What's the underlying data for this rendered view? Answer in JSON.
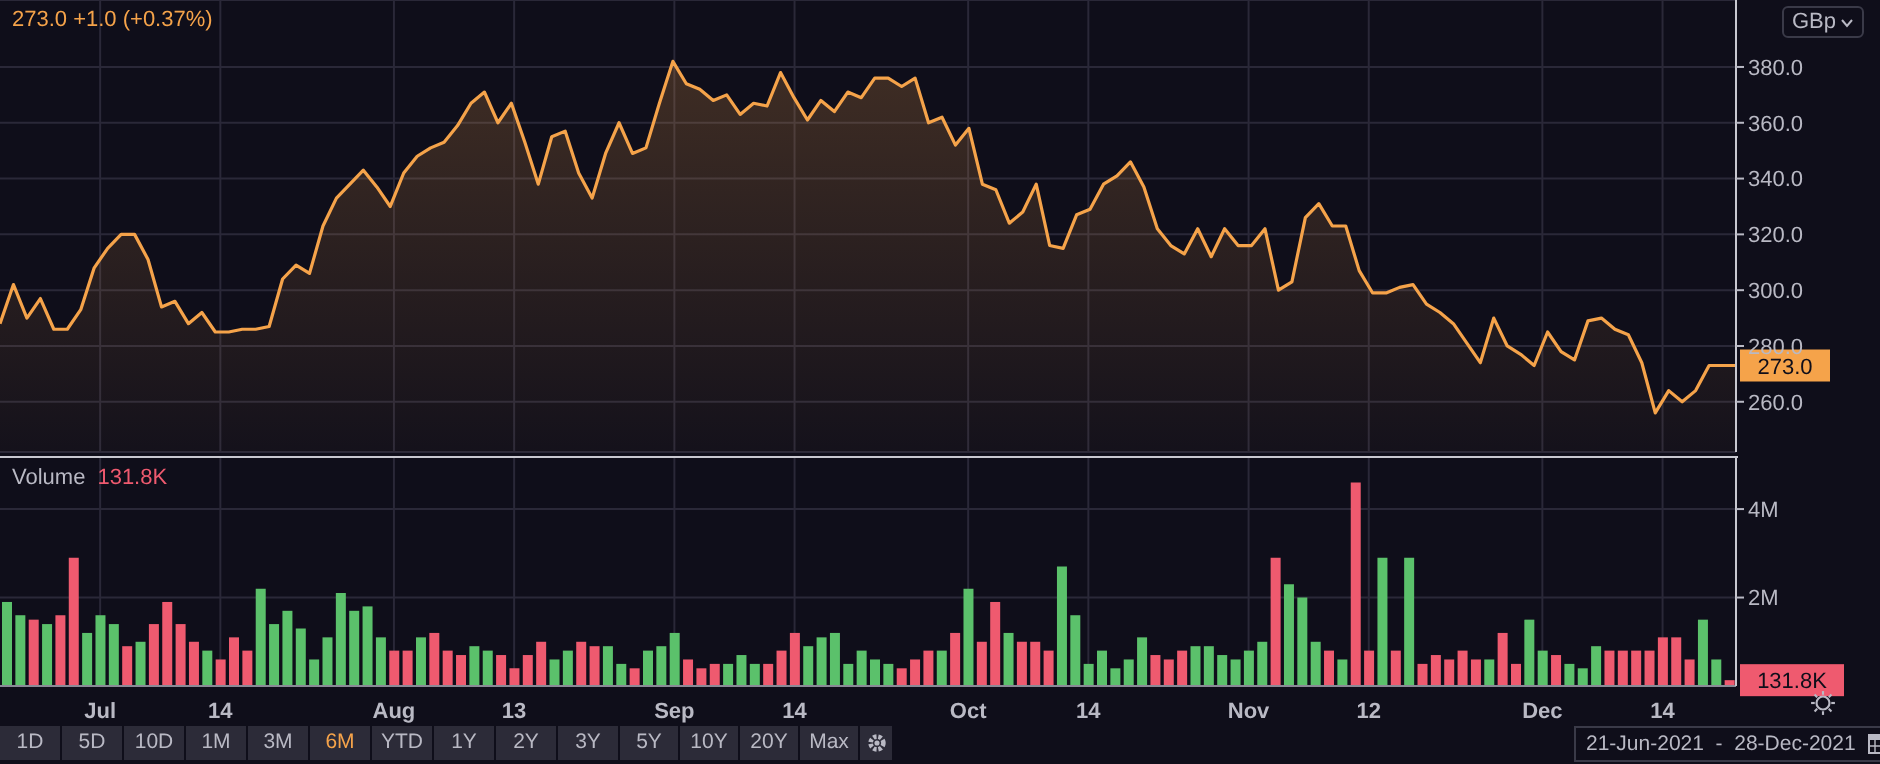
{
  "chart_data": [
    {
      "type": "area",
      "title": "273.0 +1.0 (+0.37%)",
      "ylabel": "GBp",
      "categories": [
        null,
        null,
        null,
        null,
        null,
        null,
        null,
        null,
        null,
        null,
        null,
        null,
        null,
        null,
        null,
        null,
        null,
        null,
        null,
        null,
        null,
        null,
        null,
        null,
        null,
        null,
        null,
        null,
        null,
        null,
        null,
        null,
        null,
        null,
        null,
        null,
        null,
        null,
        null,
        null,
        null,
        null,
        null,
        null,
        null,
        null,
        null,
        null,
        null,
        null,
        null,
        null,
        null,
        null,
        null,
        null,
        null,
        null,
        null,
        null,
        null,
        null,
        null,
        null,
        null,
        null,
        null,
        null,
        null,
        null,
        null,
        null,
        null,
        null,
        null,
        null,
        null,
        null,
        null,
        null,
        null,
        null,
        null,
        null,
        null,
        null,
        null,
        null,
        null,
        null,
        null,
        null,
        null,
        null,
        null,
        null,
        null,
        null,
        null,
        null,
        null,
        null,
        null,
        null,
        null,
        null,
        null,
        null,
        null,
        null,
        null,
        null,
        null,
        null,
        null,
        null,
        null,
        null,
        null,
        null,
        null,
        null,
        null,
        null,
        null,
        null,
        null,
        null,
        null,
        null
      ],
      "series": [
        {
          "color": "#f5a34a",
          "values": [
            288,
            302,
            290,
            297,
            286,
            286,
            293,
            308,
            315,
            320,
            320,
            311,
            294,
            296,
            288,
            292,
            285,
            285,
            286,
            286,
            287,
            304,
            309,
            306,
            323,
            333,
            338,
            343,
            337,
            330,
            342,
            348,
            351,
            353,
            359,
            367,
            371,
            360,
            367,
            353,
            338,
            355,
            357,
            342,
            333,
            349,
            360,
            349,
            351,
            367,
            382,
            374,
            372,
            368,
            370,
            363,
            367,
            366,
            378,
            369,
            361,
            368,
            364,
            371,
            369,
            376,
            376,
            373,
            376,
            360,
            362,
            352,
            358,
            338,
            336,
            324,
            328,
            338,
            316,
            315,
            327,
            329,
            338,
            341,
            346,
            337,
            322,
            316,
            313,
            322,
            312,
            322,
            316,
            316,
            322,
            300,
            303,
            326,
            331,
            323,
            323,
            307,
            299,
            299,
            301,
            302,
            295,
            292,
            288,
            281,
            274,
            290,
            280,
            277,
            273,
            285,
            278,
            275,
            289,
            290,
            286,
            284,
            274,
            256,
            264,
            260,
            264,
            273,
            273,
            273
          ]
        }
      ],
      "ylim": [
        242,
        404
      ],
      "yticks": [
        {
          "value": 260,
          "label": "260.0"
        },
        {
          "value": 280,
          "label": "280.0"
        },
        {
          "value": 300,
          "label": "300.0"
        },
        {
          "value": 320,
          "label": "320.0"
        },
        {
          "value": 340,
          "label": "340.0"
        },
        {
          "value": 360,
          "label": "360.0"
        },
        {
          "value": 380,
          "label": "380.0"
        }
      ],
      "annotations": [
        "273.0"
      ],
      "grid": true,
      "legend": false,
      "tick_labels": "y"
    },
    {
      "type": "bar",
      "title": "Volume",
      "subtitle": "131.8K",
      "categories": [
        null,
        null,
        null,
        null,
        null,
        null,
        null,
        "Jul",
        null,
        null,
        null,
        null,
        null,
        null,
        null,
        null,
        "14",
        null,
        null,
        null,
        null,
        null,
        null,
        null,
        null,
        null,
        null,
        null,
        null,
        "Aug",
        null,
        null,
        null,
        null,
        null,
        null,
        null,
        null,
        "13",
        null,
        null,
        null,
        null,
        null,
        null,
        null,
        null,
        null,
        null,
        null,
        "Sep",
        null,
        null,
        null,
        null,
        null,
        null,
        null,
        null,
        "14",
        null,
        null,
        null,
        null,
        null,
        null,
        null,
        null,
        null,
        null,
        null,
        null,
        "Oct",
        null,
        null,
        null,
        null,
        null,
        null,
        null,
        null,
        "14",
        null,
        null,
        null,
        null,
        null,
        null,
        null,
        null,
        null,
        null,
        null,
        "Nov",
        null,
        null,
        null,
        null,
        null,
        null,
        null,
        null,
        "12",
        null,
        null,
        null,
        null,
        null,
        null,
        null,
        null,
        null,
        null,
        null,
        null,
        "Dec",
        null,
        null,
        null,
        null,
        null,
        null,
        null,
        null,
        "14",
        null,
        null,
        null,
        null,
        null
      ],
      "values": [
        1.9,
        1.6,
        1.5,
        1.4,
        1.6,
        2.9,
        1.2,
        1.6,
        1.4,
        0.9,
        1.0,
        1.4,
        1.9,
        1.4,
        1.0,
        0.8,
        0.6,
        1.1,
        0.8,
        2.2,
        1.4,
        1.7,
        1.3,
        0.6,
        1.1,
        2.1,
        1.7,
        1.8,
        1.1,
        0.8,
        0.8,
        1.1,
        1.2,
        0.8,
        0.7,
        0.9,
        0.8,
        0.7,
        0.4,
        0.7,
        1.0,
        0.6,
        0.8,
        1.0,
        0.9,
        0.9,
        0.5,
        0.4,
        0.8,
        0.9,
        1.2,
        0.6,
        0.4,
        0.5,
        0.5,
        0.7,
        0.5,
        0.5,
        0.8,
        1.2,
        0.9,
        1.1,
        1.2,
        0.5,
        0.8,
        0.6,
        0.5,
        0.4,
        0.6,
        0.8,
        0.8,
        1.2,
        2.2,
        1.0,
        1.9,
        1.2,
        1.0,
        1.0,
        0.8,
        2.7,
        1.6,
        0.5,
        0.8,
        0.4,
        0.6,
        1.1,
        0.7,
        0.6,
        0.8,
        0.9,
        0.9,
        0.7,
        0.6,
        0.8,
        1.0,
        2.9,
        2.3,
        2.0,
        1.0,
        0.8,
        0.6,
        4.6,
        0.8,
        2.9,
        0.8,
        2.9,
        0.5,
        0.7,
        0.6,
        0.8,
        0.6,
        0.6,
        1.2,
        0.5,
        1.5,
        0.8,
        0.7,
        0.5,
        0.4,
        0.9,
        0.8,
        0.8,
        0.8,
        0.8,
        1.1,
        1.1,
        0.6,
        1.5,
        0.6,
        0.1318
      ],
      "colors": [
        "#5bc16b",
        "#5bc16b",
        "#ef5a6f",
        "#5bc16b",
        "#ef5a6f",
        "#ef5a6f",
        "#5bc16b",
        "#5bc16b",
        "#5bc16b",
        "#ef5a6f",
        "#5bc16b",
        "#ef5a6f",
        "#ef5a6f",
        "#ef5a6f",
        "#ef5a6f",
        "#5bc16b",
        "#ef5a6f",
        "#ef5a6f",
        "#ef5a6f",
        "#5bc16b",
        "#5bc16b",
        "#5bc16b",
        "#5bc16b",
        "#5bc16b",
        "#5bc16b",
        "#5bc16b",
        "#5bc16b",
        "#5bc16b",
        "#5bc16b",
        "#ef5a6f",
        "#ef5a6f",
        "#5bc16b",
        "#ef5a6f",
        "#ef5a6f",
        "#ef5a6f",
        "#5bc16b",
        "#5bc16b",
        "#ef5a6f",
        "#ef5a6f",
        "#ef5a6f",
        "#ef5a6f",
        "#5bc16b",
        "#5bc16b",
        "#ef5a6f",
        "#ef5a6f",
        "#5bc16b",
        "#5bc16b",
        "#ef5a6f",
        "#5bc16b",
        "#5bc16b",
        "#5bc16b",
        "#ef5a6f",
        "#ef5a6f",
        "#ef5a6f",
        "#5bc16b",
        "#5bc16b",
        "#5bc16b",
        "#ef5a6f",
        "#ef5a6f",
        "#ef5a6f",
        "#5bc16b",
        "#5bc16b",
        "#5bc16b",
        "#5bc16b",
        "#5bc16b",
        "#5bc16b",
        "#5bc16b",
        "#ef5a6f",
        "#ef5a6f",
        "#ef5a6f",
        "#5bc16b",
        "#ef5a6f",
        "#5bc16b",
        "#ef5a6f",
        "#ef5a6f",
        "#5bc16b",
        "#ef5a6f",
        "#ef5a6f",
        "#ef5a6f",
        "#5bc16b",
        "#5bc16b",
        "#5bc16b",
        "#5bc16b",
        "#5bc16b",
        "#5bc16b",
        "#5bc16b",
        "#ef5a6f",
        "#ef5a6f",
        "#ef5a6f",
        "#5bc16b",
        "#5bc16b",
        "#5bc16b",
        "#5bc16b",
        "#5bc16b",
        "#5bc16b",
        "#ef5a6f",
        "#5bc16b",
        "#5bc16b",
        "#5bc16b",
        "#ef5a6f",
        "#5bc16b",
        "#ef5a6f",
        "#ef5a6f",
        "#5bc16b",
        "#ef5a6f",
        "#5bc16b",
        "#ef5a6f",
        "#ef5a6f",
        "#ef5a6f",
        "#ef5a6f",
        "#ef5a6f",
        "#5bc16b",
        "#ef5a6f",
        "#ef5a6f",
        "#5bc16b",
        "#5bc16b",
        "#ef5a6f",
        "#5bc16b",
        "#5bc16b",
        "#5bc16b",
        "#ef5a6f",
        "#ef5a6f",
        "#ef5a6f",
        "#ef5a6f",
        "#ef5a6f",
        "#ef5a6f",
        "#ef5a6f",
        "#5bc16b",
        "#5bc16b",
        "#ef5a6f"
      ],
      "ylim": [
        0,
        5.2
      ],
      "yticks": [
        {
          "value": 2,
          "label": "2M"
        },
        {
          "value": 4,
          "label": "4M"
        }
      ],
      "annotations": [
        "131.8K",
        "1D",
        "5D",
        "10D",
        "1M",
        "3M",
        "6M",
        "YTD",
        "1Y",
        "2Y",
        "3Y",
        "5Y",
        "10Y",
        "20Y",
        "Max",
        "21-Jun-2021  -  28-Dec-2021"
      ],
      "grid": true,
      "legend": false
    }
  ]
}
